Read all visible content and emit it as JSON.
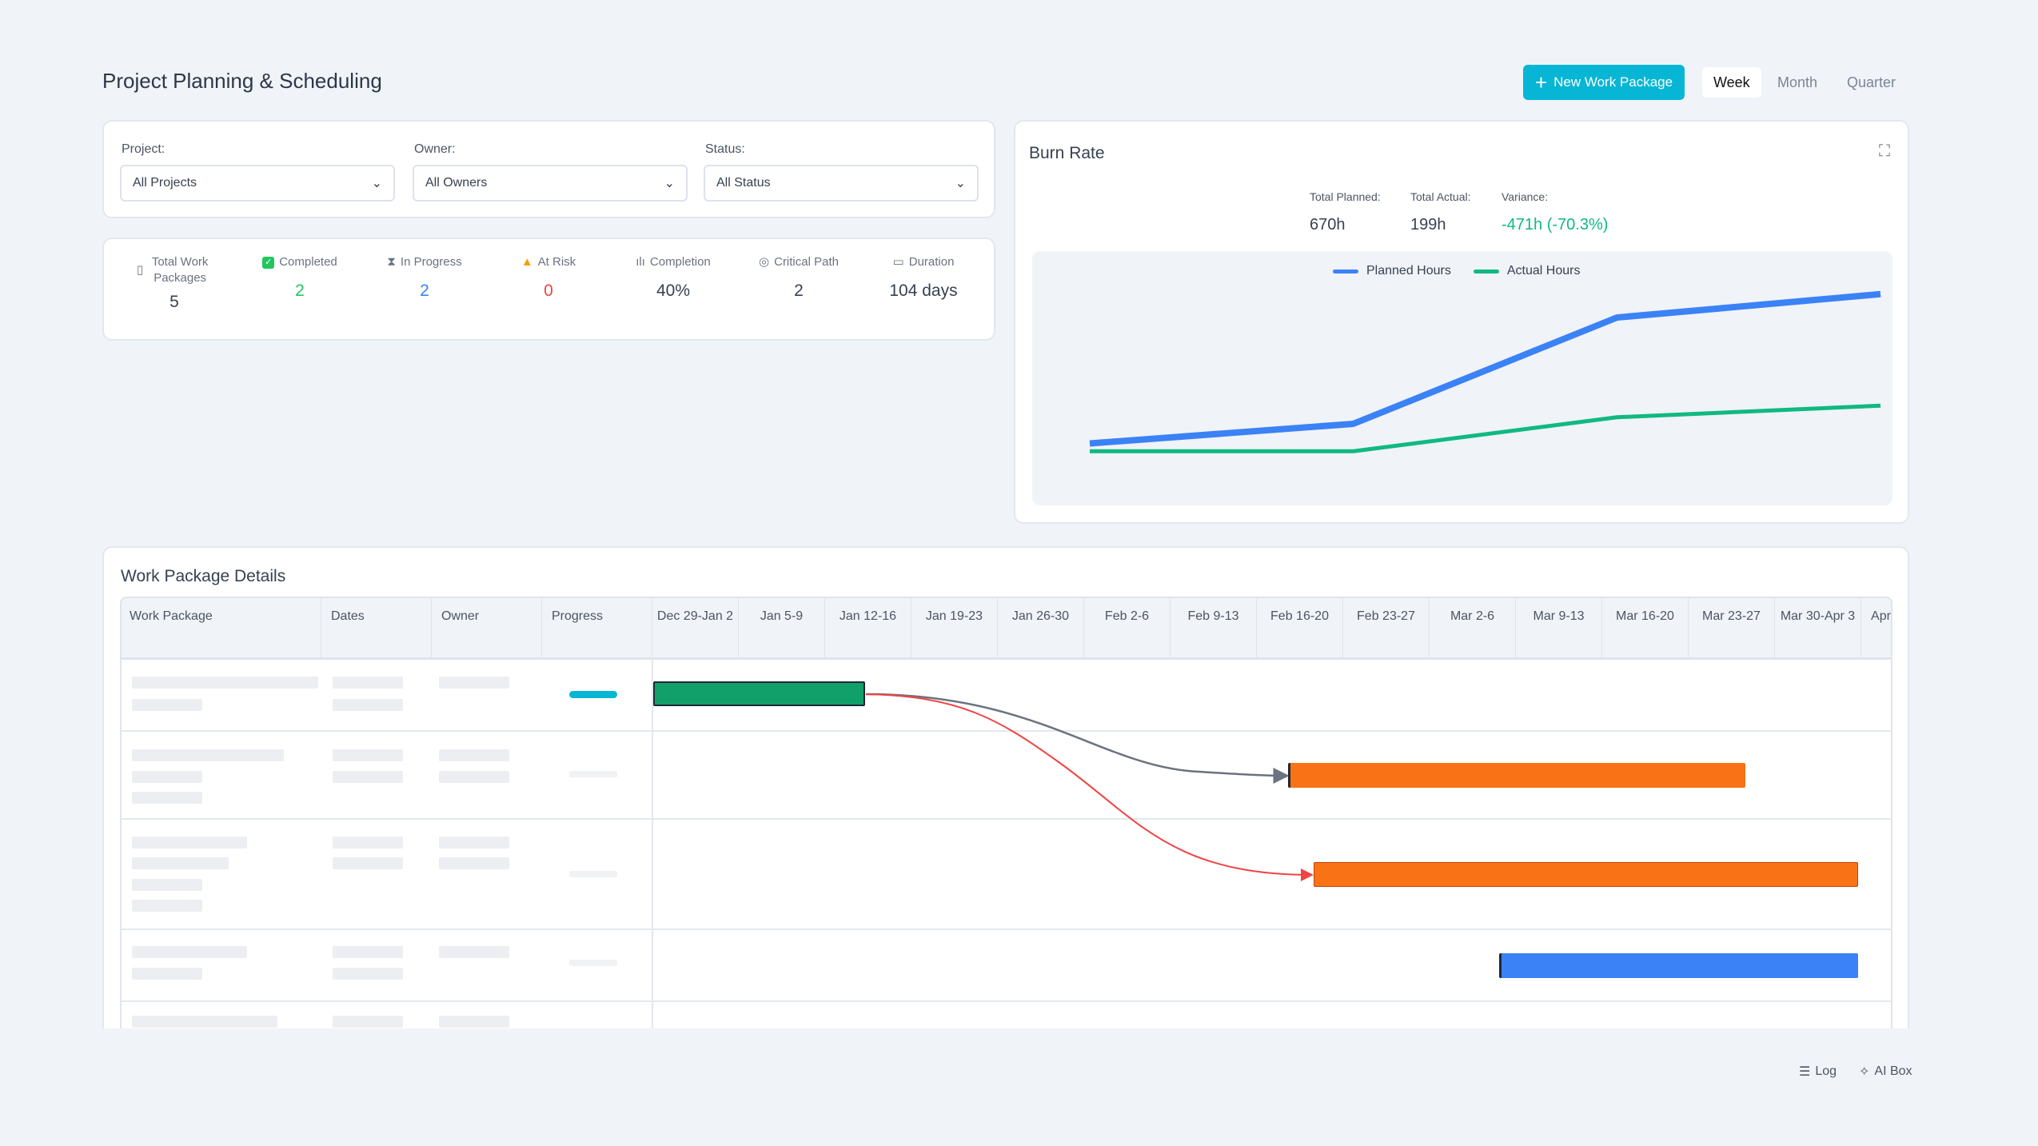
{
  "header": {
    "title": "Project Planning & Scheduling",
    "new_button": "New Work Package",
    "views": [
      "Week",
      "Month",
      "Quarter"
    ],
    "active_view": "Week"
  },
  "filters": [
    {
      "label": "Project:",
      "value": "All Projects"
    },
    {
      "label": "Owner:",
      "value": "All Owners"
    },
    {
      "label": "Status:",
      "value": "All Status"
    }
  ],
  "stats": [
    {
      "icon": "clipboard-icon",
      "label": "Total Work Packages",
      "value": "5",
      "color": "#374151"
    },
    {
      "icon": "check-icon",
      "label": "Completed",
      "value": "2",
      "color": "#22c55e"
    },
    {
      "icon": "hourglass-icon",
      "label": "In Progress",
      "value": "2",
      "color": "#3b82f6"
    },
    {
      "icon": "warning-icon",
      "label": "At Risk",
      "value": "0",
      "color": "#ef4444"
    },
    {
      "icon": "bar-chart-icon",
      "label": "Completion",
      "value": "40%",
      "color": "#374151"
    },
    {
      "icon": "target-icon",
      "label": "Critical Path",
      "value": "2",
      "color": "#374151"
    },
    {
      "icon": "calendar-icon",
      "label": "Duration",
      "value": "104 days",
      "color": "#374151"
    }
  ],
  "burn_rate": {
    "title": "Burn Rate",
    "total_planned_label": "Total Planned:",
    "total_planned": "670h",
    "total_actual_label": "Total Actual:",
    "total_actual": "199h",
    "variance_label": "Variance:",
    "variance": "-471h (-70.3%)"
  },
  "chart_data": {
    "type": "line",
    "title": "Burn Rate",
    "x": [
      1,
      2,
      3,
      4
    ],
    "ylim": [
      0,
      670
    ],
    "legend": "top-center",
    "series": [
      {
        "name": "Planned Hours",
        "color": "#3b82f6",
        "values": [
          46,
          124,
          546,
          639
        ]
      },
      {
        "name": "Actual Hours",
        "color": "#10b981",
        "values": [
          15,
          15,
          150,
          196
        ]
      }
    ]
  },
  "work_packages": {
    "title": "Work Package Details",
    "columns": [
      "Work Package",
      "Dates",
      "Owner",
      "Progress"
    ],
    "weeks": [
      "Dec 29-Jan 2",
      "Jan 5-9",
      "Jan 12-16",
      "Jan 19-23",
      "Jan 26-30",
      "Feb 2-6",
      "Feb 9-13",
      "Feb 16-20",
      "Feb 23-27",
      "Mar 2-6",
      "Mar 9-13",
      "Mar 16-20",
      "Mar 23-27",
      "Mar 30-Apr 3",
      "Apr"
    ],
    "bars": [
      {
        "color": "#12a06a",
        "start_week": 0,
        "end_week": 2.45
      },
      {
        "color": "#f97316",
        "start_week": 7.35,
        "end_week": 12.65
      },
      {
        "color": "#f97316",
        "start_week": 7.65,
        "end_week": 13.95
      },
      {
        "color": "#3b82f6",
        "start_week": 9.8,
        "end_week": 13.95
      }
    ]
  },
  "footer": {
    "log": "Log",
    "ai_box": "AI Box"
  }
}
